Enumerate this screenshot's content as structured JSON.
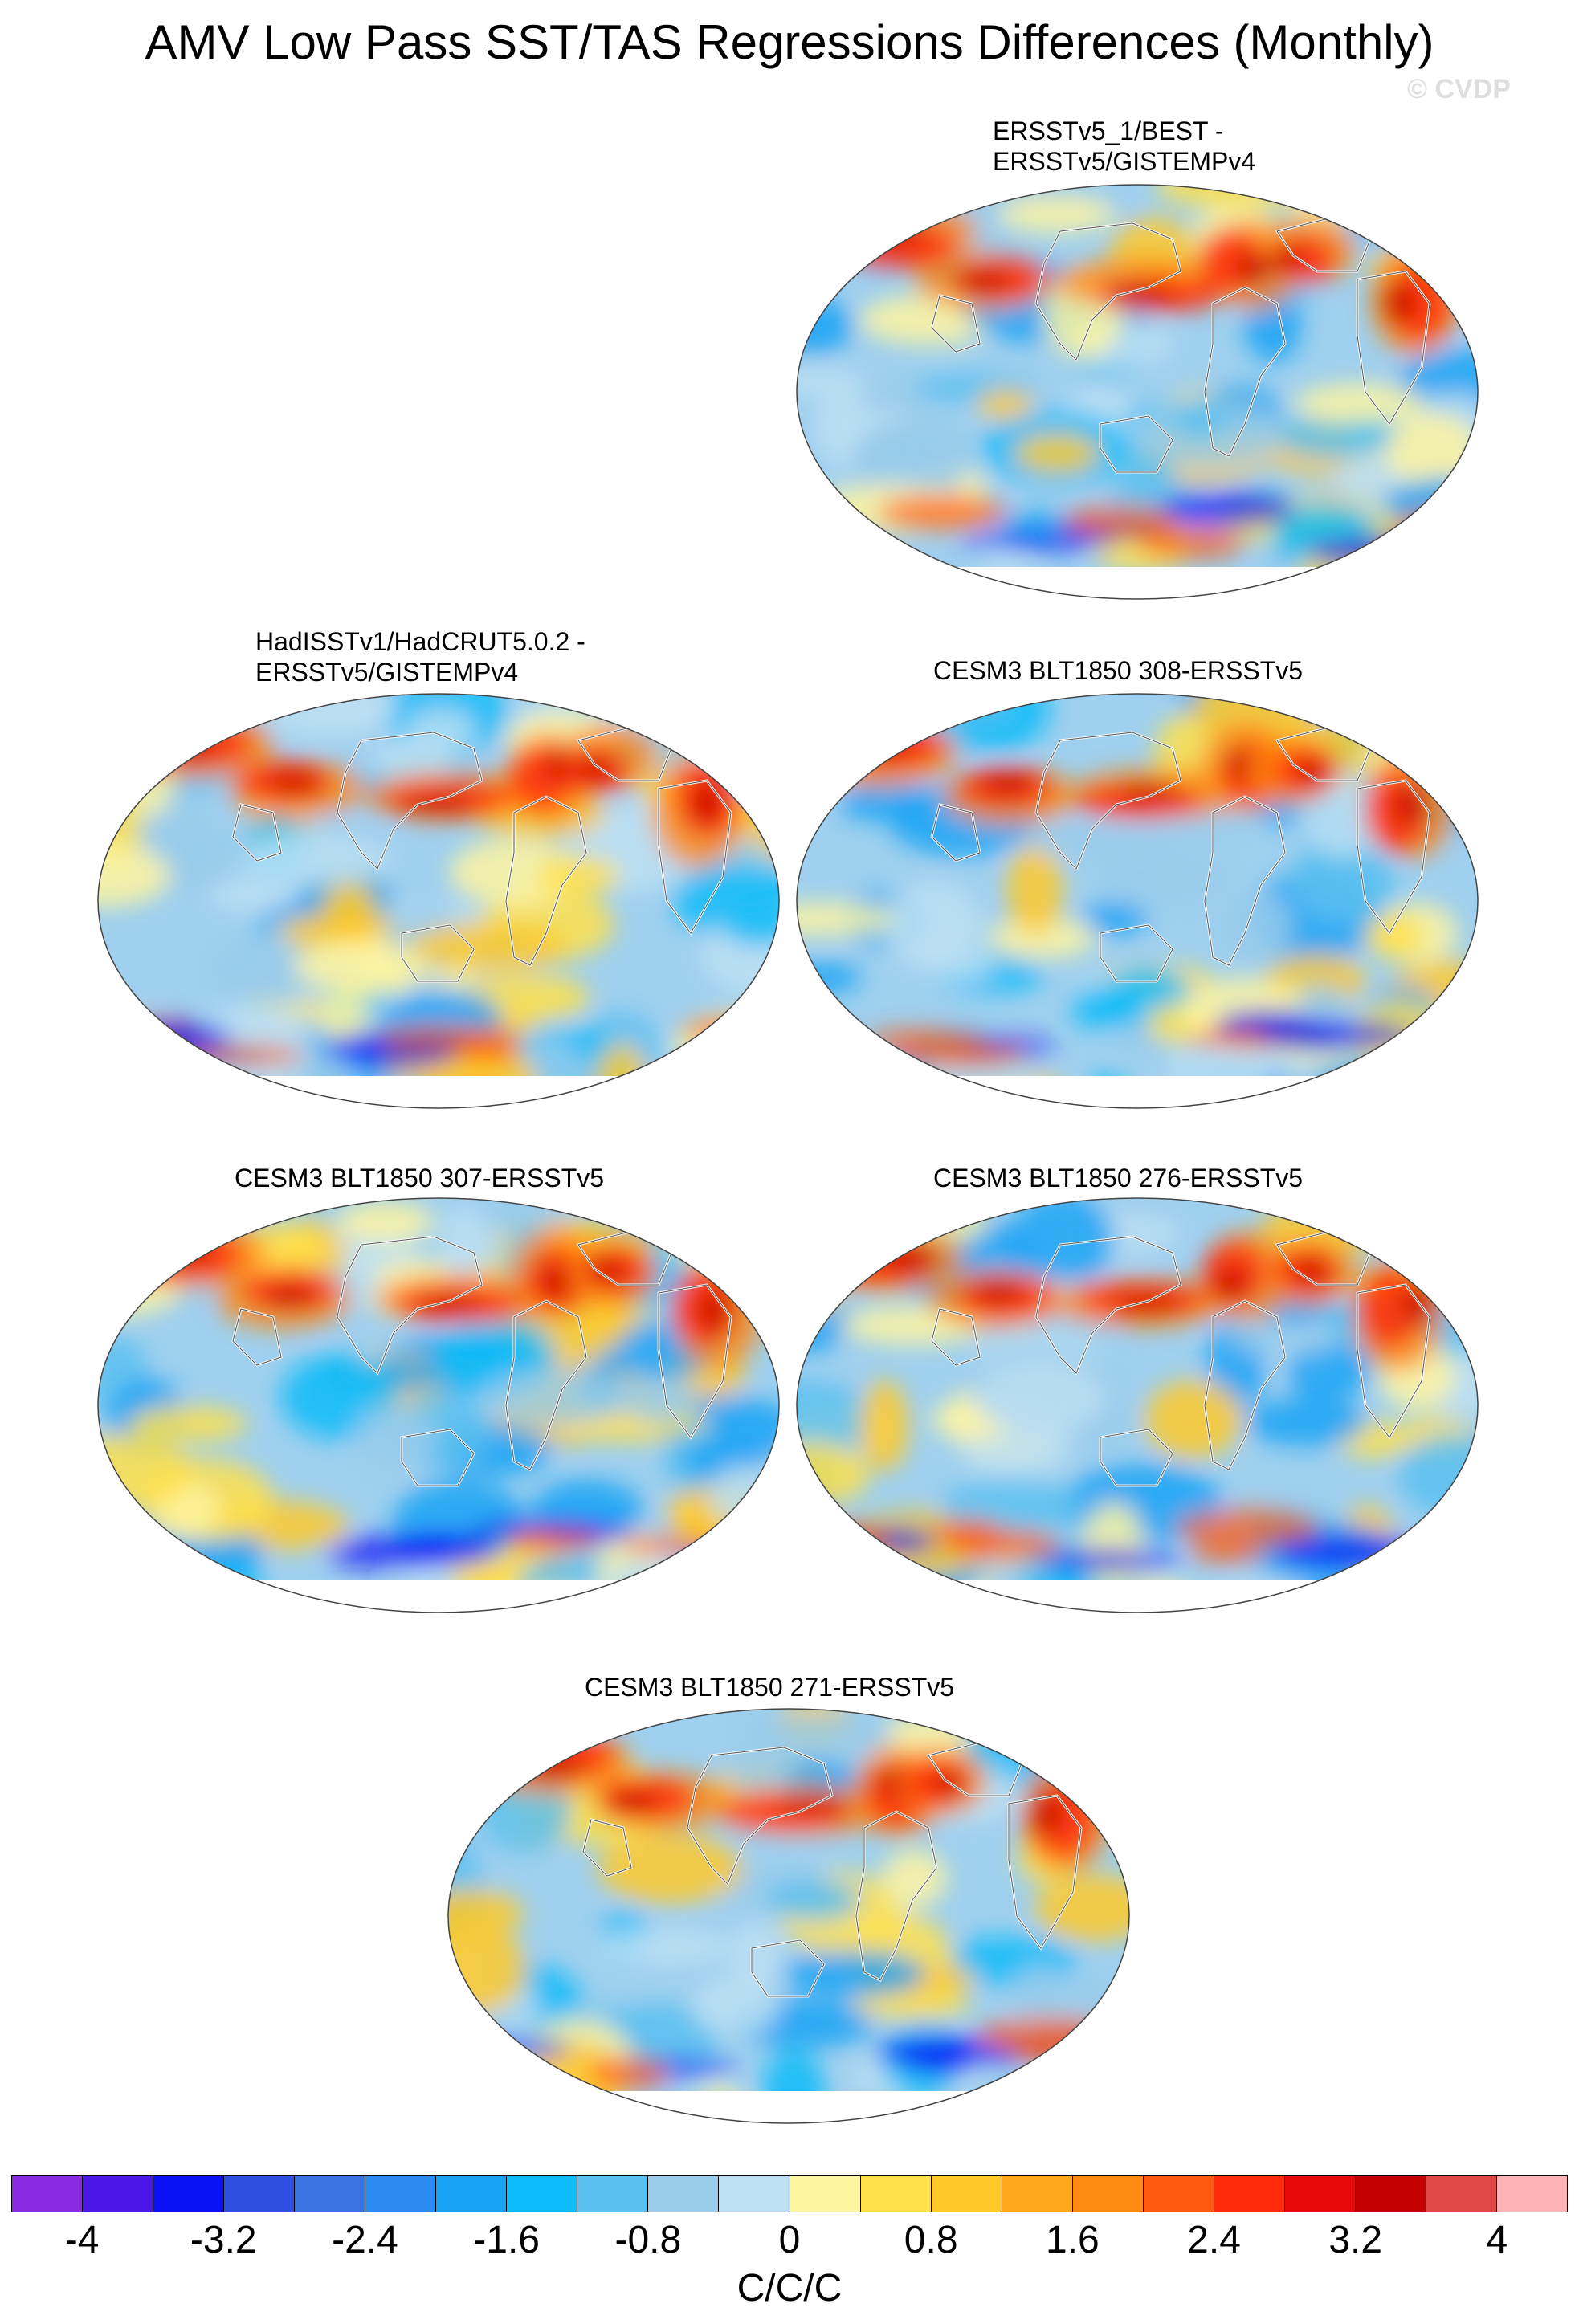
{
  "title": "AMV Low Pass SST/TAS Regressions Differences (Monthly)",
  "watermark": "© CVDP",
  "panels": [
    {
      "id": "p1",
      "title": [
        "ERSSTv5_1/BEST -",
        "ERSSTv5/GISTEMPv4"
      ],
      "seed": 11
    },
    {
      "id": "p2",
      "title": [
        "HadISSTv1/HadCRUT5.0.2 -",
        "ERSSTv5/GISTEMPv4"
      ],
      "seed": 23
    },
    {
      "id": "p3",
      "title": [
        "CESM3 BLT1850 308-ERSSTv5"
      ],
      "seed": 37
    },
    {
      "id": "p4",
      "title": [
        "CESM3 BLT1850 307-ERSSTv5"
      ],
      "seed": 41
    },
    {
      "id": "p5",
      "title": [
        "CESM3 BLT1850 276-ERSSTv5"
      ],
      "seed": 53
    },
    {
      "id": "p6",
      "title": [
        "CESM3 BLT1850 271-ERSSTv5"
      ],
      "seed": 67
    }
  ],
  "colorbar": {
    "colors": [
      "#8a2be2",
      "#4b17e8",
      "#0a12f5",
      "#2f4fe0",
      "#3a74e2",
      "#2a8cf0",
      "#1aa3f5",
      "#0dbcf8",
      "#5ac0f0",
      "#99cbeb",
      "#bddff2",
      "#fff5a0",
      "#ffe04a",
      "#ffc928",
      "#ffa81a",
      "#ff8a12",
      "#ff5a10",
      "#ff2a0a",
      "#e80a0a",
      "#c40000",
      "#e04848",
      "#ffb4b4"
    ],
    "tick_labels": [
      "-4",
      "-3.2",
      "-2.4",
      "-1.6",
      "-0.8",
      "0",
      "0.8",
      "1.6",
      "2.4",
      "3.2",
      "4"
    ],
    "units": "C/C/C"
  }
}
